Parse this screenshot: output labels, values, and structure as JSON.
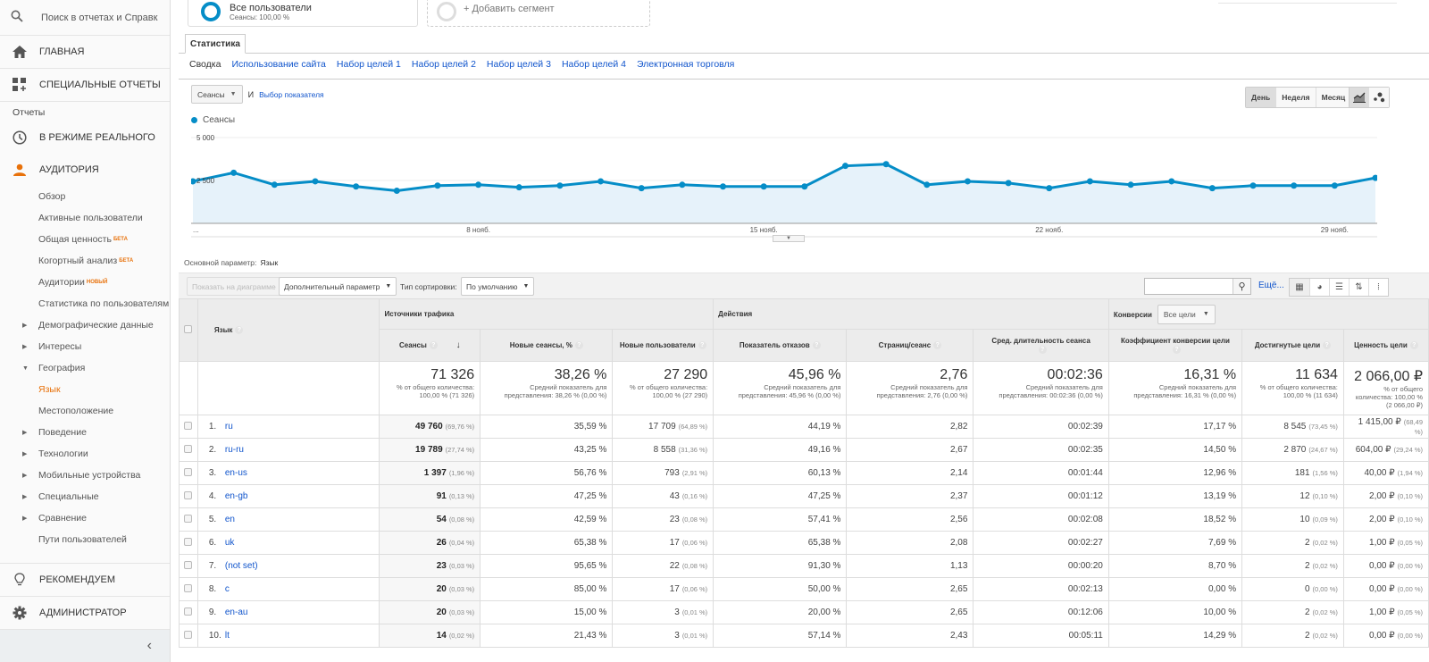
{
  "sidebar": {
    "search_placeholder": "Поиск в отчетах и Справк",
    "home": "ГЛАВНАЯ",
    "custom_reports": "СПЕЦИАЛЬНЫЕ ОТЧЕТЫ",
    "reports_section": "Отчеты",
    "realtime": "В РЕЖИМЕ РЕАЛЬНОГО",
    "audience": "АУДИТОРИЯ",
    "items": [
      {
        "label": "Обзор",
        "badge": "",
        "arrow": ""
      },
      {
        "label": "Активные пользователи",
        "badge": "",
        "arrow": ""
      },
      {
        "label": "Общая ценность",
        "badge": "БЕТА",
        "arrow": ""
      },
      {
        "label": "Когортный анализ",
        "badge": "БЕТА",
        "arrow": ""
      },
      {
        "label": "Аудитории",
        "badge": "НОВЫЙ",
        "arrow": ""
      },
      {
        "label": "Статистика по пользователям",
        "badge": "",
        "arrow": ""
      },
      {
        "label": "Демографические данные",
        "badge": "",
        "arrow": "▶"
      },
      {
        "label": "Интересы",
        "badge": "",
        "arrow": "▶"
      },
      {
        "label": "География",
        "badge": "",
        "arrow": "▼"
      },
      {
        "label": "Язык",
        "badge": "",
        "arrow": ""
      },
      {
        "label": "Местоположение",
        "badge": "",
        "arrow": ""
      },
      {
        "label": "Поведение",
        "badge": "",
        "arrow": "▶"
      },
      {
        "label": "Технологии",
        "badge": "",
        "arrow": "▶"
      },
      {
        "label": "Мобильные устройства",
        "badge": "",
        "arrow": "▶"
      },
      {
        "label": "Специальные",
        "badge": "",
        "arrow": "▶"
      },
      {
        "label": "Сравнение",
        "badge": "",
        "arrow": "▶"
      },
      {
        "label": "Пути пользователей",
        "badge": "",
        "arrow": ""
      }
    ],
    "recommend": "РЕКОМЕНДУЕМ",
    "admin": "АДМИНИСТРАТОР",
    "collapse": "‹"
  },
  "segments": {
    "all_users": "Все пользователи",
    "all_users_sub": "Сеансы: 100,00 %",
    "add_segment": "+ Добавить сегмент"
  },
  "tabs": {
    "main": "Статистика",
    "sub": [
      "Сводка",
      "Использование сайта",
      "Набор целей 1",
      "Набор целей 2",
      "Набор целей 3",
      "Набор целей 4",
      "Электронная торговля"
    ]
  },
  "controls": {
    "metric": "Сеансы",
    "and": "И",
    "choose_metric": "Выбор показателя",
    "periods": [
      "День",
      "Неделя",
      "Месяц"
    ]
  },
  "chart_data": {
    "type": "line",
    "title": "",
    "legend": [
      "Сеансы"
    ],
    "color": "#058dc7",
    "y_ticks": [
      "5 000",
      "2 500"
    ],
    "ylim": [
      0,
      5000
    ],
    "x_labels": [
      "...",
      "8 нояб.",
      "15 нояб.",
      "22 нояб.",
      "29 нояб."
    ],
    "x": [
      "1 нояб.",
      "2 нояб.",
      "3 нояб.",
      "4 нояб.",
      "5 нояб.",
      "6 нояб.",
      "7 нояб.",
      "8 нояб.",
      "9 нояб.",
      "10 нояб.",
      "11 нояб.",
      "12 нояб.",
      "13 нояб.",
      "14 нояб.",
      "15 нояб.",
      "16 нояб.",
      "17 нояб.",
      "18 нояб.",
      "19 нояб.",
      "20 нояб.",
      "21 нояб.",
      "22 нояб.",
      "23 нояб.",
      "24 нояб.",
      "25 нояб.",
      "26 нояб.",
      "27 нояб.",
      "28 нояб.",
      "29 нояб.",
      "30 нояб."
    ],
    "series": [
      {
        "name": "Сеансы",
        "values": [
          2450,
          2950,
          2250,
          2450,
          2150,
          1900,
          2200,
          2250,
          2100,
          2200,
          2450,
          2050,
          2250,
          2150,
          2150,
          2150,
          3350,
          3450,
          2250,
          2450,
          2350,
          2050,
          2450,
          2250,
          2450,
          2050,
          2200,
          2200,
          2200,
          2650
        ]
      }
    ]
  },
  "primary_dimension": {
    "label": "Основной параметр:",
    "value": "Язык"
  },
  "toolbar": {
    "plot_rows": "Показать на диаграмме",
    "secondary_dim": "Дополнительный параметр",
    "sort_label": "Тип сортировки:",
    "sort_value": "По умолчанию",
    "more": "Ещё..."
  },
  "table": {
    "dim_header": "Язык",
    "groups": {
      "acquisition": "Источники трафика",
      "behavior": "Действия",
      "conversions": "Конверсии",
      "goal_select": "Все цели"
    },
    "columns": [
      "Сеансы",
      "Новые сеансы, %",
      "Новые пользователи",
      "Показатель отказов",
      "Страниц/сеанс",
      "Сред. длительность сеанса",
      "Коэффициент конверсии цели",
      "Достигнутые цели",
      "Ценность цели"
    ],
    "totals": [
      {
        "big": "71 326",
        "sub": "% от общего количества: 100,00 % (71 326)"
      },
      {
        "big": "38,26 %",
        "sub": "Средний показатель для представления: 38,26 % (0,00 %)"
      },
      {
        "big": "27 290",
        "sub": "% от общего количества: 100,00 % (27 290)"
      },
      {
        "big": "45,96 %",
        "sub": "Средний показатель для представления: 45,96 % (0,00 %)"
      },
      {
        "big": "2,76",
        "sub": "Средний показатель для представления: 2,76 (0,00 %)"
      },
      {
        "big": "00:02:36",
        "sub": "Средний показатель для представления: 00:02:36 (0,00 %)"
      },
      {
        "big": "16,31 %",
        "sub": "Средний показатель для представления: 16,31 % (0,00 %)"
      },
      {
        "big": "11 634",
        "sub": "% от общего количества: 100,00 % (11 634)"
      },
      {
        "big": "2 066,00 ₽",
        "sub": "% от общего количества: 100,00 % (2 066,00 ₽)"
      }
    ],
    "rows": [
      {
        "idx": "1.",
        "lang": "ru",
        "sessions": "49 760",
        "sessions_pct": "(69,76 %)",
        "new_sess": "35,59 %",
        "new_users": "17 709",
        "new_users_pct": "(64,89 %)",
        "bounce": "44,19 %",
        "pages": "2,82",
        "duration": "00:02:39",
        "conv": "17,17 %",
        "goals": "8 545",
        "goals_pct": "(73,45 %)",
        "value": "1 415,00 ₽",
        "value_pct": "(68,49 %)"
      },
      {
        "idx": "2.",
        "lang": "ru-ru",
        "sessions": "19 789",
        "sessions_pct": "(27,74 %)",
        "new_sess": "43,25 %",
        "new_users": "8 558",
        "new_users_pct": "(31,36 %)",
        "bounce": "49,16 %",
        "pages": "2,67",
        "duration": "00:02:35",
        "conv": "14,50 %",
        "goals": "2 870",
        "goals_pct": "(24,67 %)",
        "value": "604,00 ₽",
        "value_pct": "(29,24 %)"
      },
      {
        "idx": "3.",
        "lang": "en-us",
        "sessions": "1 397",
        "sessions_pct": "(1,96 %)",
        "new_sess": "56,76 %",
        "new_users": "793",
        "new_users_pct": "(2,91 %)",
        "bounce": "60,13 %",
        "pages": "2,14",
        "duration": "00:01:44",
        "conv": "12,96 %",
        "goals": "181",
        "goals_pct": "(1,56 %)",
        "value": "40,00 ₽",
        "value_pct": "(1,94 %)"
      },
      {
        "idx": "4.",
        "lang": "en-gb",
        "sessions": "91",
        "sessions_pct": "(0,13 %)",
        "new_sess": "47,25 %",
        "new_users": "43",
        "new_users_pct": "(0,16 %)",
        "bounce": "47,25 %",
        "pages": "2,37",
        "duration": "00:01:12",
        "conv": "13,19 %",
        "goals": "12",
        "goals_pct": "(0,10 %)",
        "value": "2,00 ₽",
        "value_pct": "(0,10 %)"
      },
      {
        "idx": "5.",
        "lang": "en",
        "sessions": "54",
        "sessions_pct": "(0,08 %)",
        "new_sess": "42,59 %",
        "new_users": "23",
        "new_users_pct": "(0,08 %)",
        "bounce": "57,41 %",
        "pages": "2,56",
        "duration": "00:02:08",
        "conv": "18,52 %",
        "goals": "10",
        "goals_pct": "(0,09 %)",
        "value": "2,00 ₽",
        "value_pct": "(0,10 %)"
      },
      {
        "idx": "6.",
        "lang": "uk",
        "sessions": "26",
        "sessions_pct": "(0,04 %)",
        "new_sess": "65,38 %",
        "new_users": "17",
        "new_users_pct": "(0,06 %)",
        "bounce": "65,38 %",
        "pages": "2,08",
        "duration": "00:02:27",
        "conv": "7,69 %",
        "goals": "2",
        "goals_pct": "(0,02 %)",
        "value": "1,00 ₽",
        "value_pct": "(0,05 %)"
      },
      {
        "idx": "7.",
        "lang": "(not set)",
        "sessions": "23",
        "sessions_pct": "(0,03 %)",
        "new_sess": "95,65 %",
        "new_users": "22",
        "new_users_pct": "(0,08 %)",
        "bounce": "91,30 %",
        "pages": "1,13",
        "duration": "00:00:20",
        "conv": "8,70 %",
        "goals": "2",
        "goals_pct": "(0,02 %)",
        "value": "0,00 ₽",
        "value_pct": "(0,00 %)"
      },
      {
        "idx": "8.",
        "lang": "c",
        "sessions": "20",
        "sessions_pct": "(0,03 %)",
        "new_sess": "85,00 %",
        "new_users": "17",
        "new_users_pct": "(0,06 %)",
        "bounce": "50,00 %",
        "pages": "2,65",
        "duration": "00:02:13",
        "conv": "0,00 %",
        "goals": "0",
        "goals_pct": "(0,00 %)",
        "value": "0,00 ₽",
        "value_pct": "(0,00 %)"
      },
      {
        "idx": "9.",
        "lang": "en-au",
        "sessions": "20",
        "sessions_pct": "(0,03 %)",
        "new_sess": "15,00 %",
        "new_users": "3",
        "new_users_pct": "(0,01 %)",
        "bounce": "20,00 %",
        "pages": "2,65",
        "duration": "00:12:06",
        "conv": "10,00 %",
        "goals": "2",
        "goals_pct": "(0,02 %)",
        "value": "1,00 ₽",
        "value_pct": "(0,05 %)"
      },
      {
        "idx": "10.",
        "lang": "lt",
        "sessions": "14",
        "sessions_pct": "(0,02 %)",
        "new_sess": "21,43 %",
        "new_users": "3",
        "new_users_pct": "(0,01 %)",
        "bounce": "57,14 %",
        "pages": "2,43",
        "duration": "00:05:11",
        "conv": "14,29 %",
        "goals": "2",
        "goals_pct": "(0,02 %)",
        "value": "0,00 ₽",
        "value_pct": "(0,00 %)"
      }
    ]
  }
}
